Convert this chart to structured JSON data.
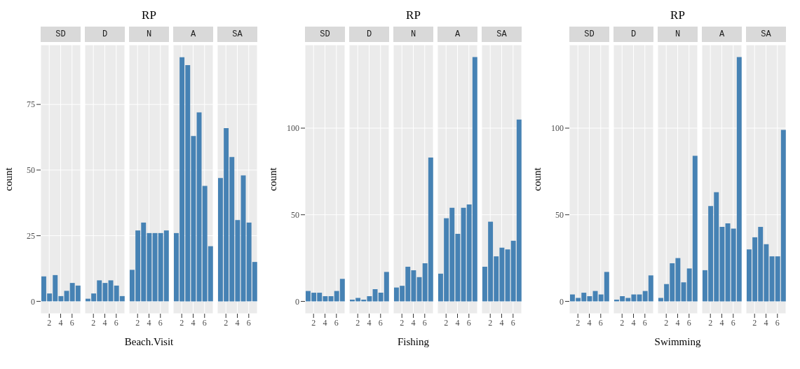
{
  "chart_data": [
    {
      "type": "bar",
      "subtitle": "SD",
      "ylabel": "count",
      "x": [
        1,
        2,
        3,
        4,
        5,
        6,
        7
      ],
      "values": [
        9.5,
        3,
        10,
        2,
        4,
        7,
        6
      ],
      "color": "#4682b4",
      "xlim": [
        0.5,
        7.5
      ],
      "xticks": [
        2,
        4,
        6
      ],
      "ylim": [
        -4.7,
        97.7
      ],
      "yticks": [
        0,
        25,
        50,
        75
      ],
      "grid": true
    },
    {
      "type": "bar",
      "subtitle": "D",
      "x": [
        1,
        2,
        3,
        4,
        5,
        6,
        7
      ],
      "values": [
        1,
        3,
        8,
        7,
        8,
        6,
        2
      ],
      "color": "#4682b4",
      "xlim": [
        0.5,
        7.5
      ],
      "xticks": [
        2,
        4,
        6
      ],
      "ylim": [
        -4.7,
        97.7
      ],
      "yticks": [
        0,
        25,
        50,
        75
      ],
      "grid": true,
      "tick_labels": "x"
    },
    {
      "type": "bar",
      "title": "RP",
      "subtitle": "N",
      "xlabel": "Beach.Visit",
      "x": [
        1,
        2,
        3,
        4,
        5,
        6,
        7
      ],
      "values": [
        12,
        27,
        30,
        26,
        26,
        26,
        27
      ],
      "color": "#4682b4",
      "xlim": [
        0.5,
        7.5
      ],
      "xticks": [
        2,
        4,
        6
      ],
      "ylim": [
        -4.7,
        97.7
      ],
      "yticks": [
        0,
        25,
        50,
        75
      ],
      "grid": true,
      "tick_labels": "x"
    },
    {
      "type": "bar",
      "subtitle": "A",
      "x": [
        1,
        2,
        3,
        4,
        5,
        6,
        7
      ],
      "values": [
        26,
        93,
        90,
        63,
        72,
        44,
        21
      ],
      "color": "#4682b4",
      "xlim": [
        0.5,
        7.5
      ],
      "xticks": [
        2,
        4,
        6
      ],
      "ylim": [
        -4.7,
        97.7
      ],
      "yticks": [
        0,
        25,
        50,
        75
      ],
      "grid": true,
      "tick_labels": "x"
    },
    {
      "type": "bar",
      "subtitle": "SA",
      "x": [
        1,
        2,
        3,
        4,
        5,
        6,
        7
      ],
      "values": [
        47,
        66,
        55,
        31,
        48,
        30,
        15
      ],
      "color": "#4682b4",
      "xlim": [
        0.5,
        7.5
      ],
      "xticks": [
        2,
        4,
        6
      ],
      "ylim": [
        -4.7,
        97.7
      ],
      "yticks": [
        0,
        25,
        50,
        75
      ],
      "grid": true,
      "tick_labels": "x"
    },
    {
      "type": "bar",
      "subtitle": "SD",
      "ylabel": "count",
      "x": [
        1,
        2,
        3,
        4,
        5,
        6,
        7
      ],
      "values": [
        6,
        5,
        5,
        3,
        3,
        6,
        13
      ],
      "color": "#4682b4",
      "xlim": [
        0.5,
        7.5
      ],
      "xticks": [
        2,
        4,
        6
      ],
      "ylim": [
        -7.1,
        148.1
      ],
      "yticks": [
        0,
        50,
        100
      ],
      "grid": true
    },
    {
      "type": "bar",
      "subtitle": "D",
      "x": [
        1,
        2,
        3,
        4,
        5,
        6,
        7
      ],
      "values": [
        1,
        2,
        1,
        3,
        7,
        5,
        17
      ],
      "color": "#4682b4",
      "xlim": [
        0.5,
        7.5
      ],
      "xticks": [
        2,
        4,
        6
      ],
      "ylim": [
        -7.1,
        148.1
      ],
      "yticks": [
        0,
        50,
        100
      ],
      "grid": true,
      "tick_labels": "x"
    },
    {
      "type": "bar",
      "title": "RP",
      "subtitle": "N",
      "xlabel": "Fishing",
      "x": [
        1,
        2,
        3,
        4,
        5,
        6,
        7
      ],
      "values": [
        8,
        9,
        20,
        18,
        14,
        22,
        83
      ],
      "color": "#4682b4",
      "xlim": [
        0.5,
        7.5
      ],
      "xticks": [
        2,
        4,
        6
      ],
      "ylim": [
        -7.1,
        148.1
      ],
      "yticks": [
        0,
        50,
        100
      ],
      "grid": true,
      "tick_labels": "x"
    },
    {
      "type": "bar",
      "subtitle": "A",
      "x": [
        1,
        2,
        3,
        4,
        5,
        6,
        7
      ],
      "values": [
        16,
        48,
        54,
        39,
        54,
        56,
        141
      ],
      "color": "#4682b4",
      "xlim": [
        0.5,
        7.5
      ],
      "xticks": [
        2,
        4,
        6
      ],
      "ylim": [
        -7.1,
        148.1
      ],
      "yticks": [
        0,
        50,
        100
      ],
      "grid": true,
      "tick_labels": "x"
    },
    {
      "type": "bar",
      "subtitle": "SA",
      "x": [
        1,
        2,
        3,
        4,
        5,
        6,
        7
      ],
      "values": [
        20,
        46,
        26,
        31,
        30,
        35,
        105
      ],
      "color": "#4682b4",
      "xlim": [
        0.5,
        7.5
      ],
      "xticks": [
        2,
        4,
        6
      ],
      "ylim": [
        -7.1,
        148.1
      ],
      "yticks": [
        0,
        50,
        100
      ],
      "grid": true,
      "tick_labels": "x"
    },
    {
      "type": "bar",
      "subtitle": "SD",
      "ylabel": "count",
      "x": [
        1,
        2,
        3,
        4,
        5,
        6,
        7
      ],
      "values": [
        4,
        2,
        5,
        3,
        6,
        4,
        17
      ],
      "color": "#4682b4",
      "xlim": [
        0.5,
        7.5
      ],
      "xticks": [
        2,
        4,
        6
      ],
      "ylim": [
        -7.1,
        148.1
      ],
      "yticks": [
        0,
        50,
        100
      ],
      "grid": true
    },
    {
      "type": "bar",
      "subtitle": "D",
      "x": [
        1,
        2,
        3,
        4,
        5,
        6,
        7
      ],
      "values": [
        1,
        3,
        2,
        4,
        4,
        6,
        15
      ],
      "color": "#4682b4",
      "xlim": [
        0.5,
        7.5
      ],
      "xticks": [
        2,
        4,
        6
      ],
      "ylim": [
        -7.1,
        148.1
      ],
      "yticks": [
        0,
        50,
        100
      ],
      "grid": true,
      "tick_labels": "x"
    },
    {
      "type": "bar",
      "title": "RP",
      "subtitle": "N",
      "xlabel": "Swimming",
      "x": [
        1,
        2,
        3,
        4,
        5,
        6,
        7
      ],
      "values": [
        2,
        10,
        22,
        25,
        11,
        19,
        84
      ],
      "color": "#4682b4",
      "xlim": [
        0.5,
        7.5
      ],
      "xticks": [
        2,
        4,
        6
      ],
      "ylim": [
        -7.1,
        148.1
      ],
      "yticks": [
        0,
        50,
        100
      ],
      "grid": true,
      "tick_labels": "x"
    },
    {
      "type": "bar",
      "subtitle": "A",
      "x": [
        1,
        2,
        3,
        4,
        5,
        6,
        7
      ],
      "values": [
        18,
        55,
        63,
        43,
        45,
        42,
        141
      ],
      "color": "#4682b4",
      "xlim": [
        0.5,
        7.5
      ],
      "xticks": [
        2,
        4,
        6
      ],
      "ylim": [
        -7.1,
        148.1
      ],
      "yticks": [
        0,
        50,
        100
      ],
      "grid": true,
      "tick_labels": "x"
    },
    {
      "type": "bar",
      "subtitle": "SA",
      "x": [
        1,
        2,
        3,
        4,
        5,
        6,
        7
      ],
      "values": [
        30,
        37,
        43,
        33,
        26,
        26,
        99
      ],
      "color": "#4682b4",
      "xlim": [
        0.5,
        7.5
      ],
      "xticks": [
        2,
        4,
        6
      ],
      "ylim": [
        -7.1,
        148.1
      ],
      "yticks": [
        0,
        50,
        100
      ],
      "grid": true,
      "tick_labels": "x"
    }
  ]
}
